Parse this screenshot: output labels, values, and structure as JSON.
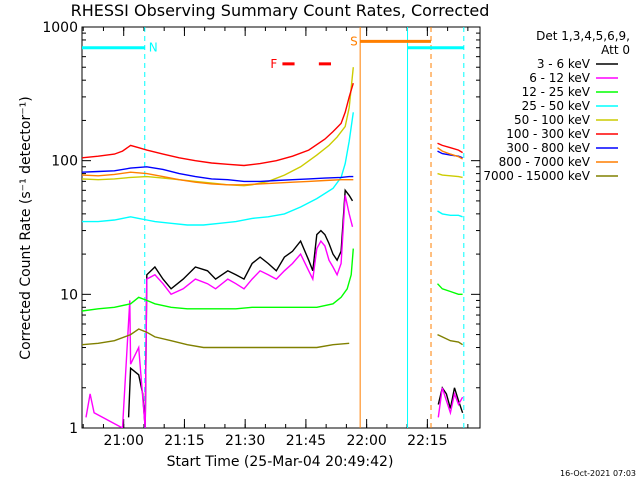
{
  "chart_data": {
    "type": "line",
    "title": "RHESSI Observing Summary Count Rates, Corrected",
    "xlabel": "Start Time (25-Mar-04 20:49:42)",
    "ylabel": "Corrected Count Rate (s⁻¹ detector⁻¹)",
    "y_scale": "log",
    "ylim": [
      1,
      1000
    ],
    "x_range_min": [
      0,
      98.3
    ],
    "x_start_time": "20:49:42",
    "x_ticks": [
      {
        "label": "21:00",
        "t": 10.3
      },
      {
        "label": "21:15",
        "t": 25.3
      },
      {
        "label": "21:30",
        "t": 40.3
      },
      {
        "label": "21:45",
        "t": 55.3
      },
      {
        "label": "22:00",
        "t": 70.3
      },
      {
        "label": "22:15",
        "t": 85.3
      }
    ],
    "y_ticks": [
      {
        "label": "1",
        "v": 1
      },
      {
        "label": "10",
        "v": 10
      },
      {
        "label": "100",
        "v": 100
      },
      {
        "label": "1000",
        "v": 1000
      }
    ],
    "legend_header": [
      "Det 1,3,4,5,6,9,",
      "Att 0"
    ],
    "annotations": {
      "N": {
        "label": "N",
        "color": "#00ffff"
      },
      "F": {
        "label": "F",
        "color": "#ff0000"
      },
      "S": {
        "label": "S",
        "color": "#ff7f00"
      }
    },
    "markers": {
      "n_level": 700,
      "s_level": 780,
      "cyan_dashed_t": [
        15.5,
        94.3
      ],
      "cyan_solid_t": [
        80.4
      ],
      "orange_solid_t": [
        68.7
      ],
      "orange_dashed_t": [
        86.2
      ],
      "n_bars_t": [
        [
          0,
          15.5
        ],
        [
          80.4,
          94.3
        ]
      ],
      "s_bar_t": [
        68.7,
        86.2
      ],
      "f_segments_t": [
        [
          49.5,
          52.5
        ],
        [
          58.5,
          61.5
        ]
      ],
      "f_level": 530
    },
    "gap_t": [
      67.2,
      87.6
    ],
    "series": [
      {
        "name": "3 - 6 keV",
        "color": "#000000",
        "points": [
          [
            11.5,
            1.2
          ],
          [
            12,
            2.8
          ],
          [
            14,
            2.5
          ],
          [
            15,
            1.8
          ],
          [
            15.6,
            1
          ],
          [
            16,
            14
          ],
          [
            18,
            16
          ],
          [
            20,
            13
          ],
          [
            22,
            11
          ],
          [
            25,
            13
          ],
          [
            28,
            16
          ],
          [
            31,
            15
          ],
          [
            33,
            13
          ],
          [
            36,
            15
          ],
          [
            38,
            14
          ],
          [
            40,
            13
          ],
          [
            42,
            17
          ],
          [
            44,
            19
          ],
          [
            46,
            17
          ],
          [
            48,
            15
          ],
          [
            50,
            19
          ],
          [
            52,
            21
          ],
          [
            54,
            25
          ],
          [
            56,
            18
          ],
          [
            57,
            15
          ],
          [
            58,
            28
          ],
          [
            59,
            30
          ],
          [
            60,
            28
          ],
          [
            61,
            24
          ],
          [
            62,
            20
          ],
          [
            63,
            18
          ],
          [
            64,
            21
          ],
          [
            65,
            60
          ],
          [
            66,
            55
          ],
          [
            66.8,
            50
          ]
        ],
        "points2": [
          [
            88,
            1.5
          ],
          [
            89,
            2
          ],
          [
            90,
            1.8
          ],
          [
            91,
            1.4
          ],
          [
            92,
            2
          ],
          [
            93,
            1.6
          ],
          [
            94,
            1.3
          ]
        ]
      },
      {
        "name": "6 - 12 keV",
        "color": "#ff00ff",
        "points": [
          [
            1,
            1.2
          ],
          [
            2,
            1.8
          ],
          [
            3,
            1.3
          ],
          [
            10,
            1
          ],
          [
            11.8,
            9
          ],
          [
            12,
            3
          ],
          [
            14,
            4
          ],
          [
            15.6,
            1
          ],
          [
            16,
            13
          ],
          [
            18,
            14
          ],
          [
            20,
            12
          ],
          [
            22,
            10
          ],
          [
            25,
            11
          ],
          [
            28,
            13
          ],
          [
            31,
            12
          ],
          [
            33,
            11
          ],
          [
            36,
            13
          ],
          [
            38,
            12
          ],
          [
            40,
            11
          ],
          [
            42,
            13
          ],
          [
            44,
            15
          ],
          [
            46,
            14
          ],
          [
            48,
            13
          ],
          [
            50,
            15
          ],
          [
            52,
            17
          ],
          [
            54,
            20
          ],
          [
            56,
            15
          ],
          [
            57,
            13
          ],
          [
            58,
            22
          ],
          [
            59,
            25
          ],
          [
            60,
            23
          ],
          [
            61,
            18
          ],
          [
            62,
            16
          ],
          [
            63,
            14
          ],
          [
            64,
            17
          ],
          [
            65,
            55
          ],
          [
            66,
            40
          ],
          [
            66.8,
            32
          ]
        ],
        "points2": [
          [
            88,
            1.2
          ],
          [
            89,
            2
          ],
          [
            90,
            1.6
          ],
          [
            91,
            1.3
          ],
          [
            92,
            1.8
          ],
          [
            93,
            1.5
          ],
          [
            94,
            1.7
          ]
        ]
      },
      {
        "name": "12 - 25 keV",
        "color": "#00ff00",
        "points": [
          [
            0,
            7.5
          ],
          [
            4,
            7.8
          ],
          [
            8,
            8
          ],
          [
            12,
            8.5
          ],
          [
            14,
            9.5
          ],
          [
            16,
            9
          ],
          [
            18,
            8.5
          ],
          [
            22,
            8
          ],
          [
            26,
            7.8
          ],
          [
            30,
            7.8
          ],
          [
            34,
            7.8
          ],
          [
            38,
            7.8
          ],
          [
            42,
            8
          ],
          [
            46,
            8
          ],
          [
            50,
            8
          ],
          [
            54,
            8
          ],
          [
            58,
            8
          ],
          [
            62,
            8.5
          ],
          [
            64,
            9.5
          ],
          [
            65.5,
            11
          ],
          [
            66.5,
            14
          ],
          [
            67,
            22
          ]
        ],
        "points2": [
          [
            87.8,
            12
          ],
          [
            89,
            11
          ],
          [
            91,
            10.5
          ],
          [
            93,
            10
          ],
          [
            94,
            10
          ]
        ]
      },
      {
        "name": "25 - 50 keV",
        "color": "#00ffff",
        "points": [
          [
            0,
            35
          ],
          [
            4,
            35
          ],
          [
            8,
            36
          ],
          [
            10,
            37
          ],
          [
            12,
            38
          ],
          [
            14,
            37
          ],
          [
            16,
            36
          ],
          [
            18,
            35
          ],
          [
            22,
            34
          ],
          [
            26,
            33
          ],
          [
            30,
            33
          ],
          [
            34,
            34
          ],
          [
            38,
            35
          ],
          [
            42,
            37
          ],
          [
            46,
            38
          ],
          [
            50,
            40
          ],
          [
            54,
            45
          ],
          [
            58,
            52
          ],
          [
            62,
            62
          ],
          [
            64,
            75
          ],
          [
            65,
            95
          ],
          [
            66,
            140
          ],
          [
            67,
            230
          ]
        ],
        "points2": [
          [
            87.8,
            42
          ],
          [
            89,
            40
          ],
          [
            91,
            39
          ],
          [
            93,
            39
          ],
          [
            94,
            38
          ]
        ]
      },
      {
        "name": "50 - 100 keV",
        "color": "#cccc00",
        "points": [
          [
            0,
            73
          ],
          [
            4,
            72
          ],
          [
            8,
            73
          ],
          [
            12,
            75
          ],
          [
            16,
            76
          ],
          [
            20,
            74
          ],
          [
            24,
            72
          ],
          [
            28,
            70
          ],
          [
            32,
            68
          ],
          [
            36,
            66
          ],
          [
            40,
            65
          ],
          [
            42,
            66
          ],
          [
            46,
            70
          ],
          [
            50,
            78
          ],
          [
            54,
            90
          ],
          [
            58,
            110
          ],
          [
            61,
            130
          ],
          [
            63,
            150
          ],
          [
            65,
            180
          ],
          [
            66,
            250
          ],
          [
            67,
            500
          ]
        ],
        "points2": [
          [
            87.8,
            80
          ],
          [
            89,
            78
          ],
          [
            91,
            77
          ],
          [
            93,
            76
          ],
          [
            94,
            75
          ]
        ]
      },
      {
        "name": "100 - 300 keV",
        "color": "#ff0000",
        "points": [
          [
            0,
            105
          ],
          [
            4,
            108
          ],
          [
            8,
            112
          ],
          [
            10,
            118
          ],
          [
            12,
            130
          ],
          [
            14,
            125
          ],
          [
            16,
            120
          ],
          [
            20,
            112
          ],
          [
            24,
            105
          ],
          [
            28,
            100
          ],
          [
            32,
            96
          ],
          [
            36,
            94
          ],
          [
            40,
            92
          ],
          [
            44,
            95
          ],
          [
            48,
            100
          ],
          [
            52,
            108
          ],
          [
            56,
            120
          ],
          [
            60,
            145
          ],
          [
            62,
            165
          ],
          [
            64,
            190
          ],
          [
            65,
            230
          ],
          [
            66,
            300
          ],
          [
            67,
            380
          ]
        ],
        "points2": [
          [
            87.8,
            135
          ],
          [
            89,
            130
          ],
          [
            91,
            125
          ],
          [
            93,
            120
          ],
          [
            94,
            115
          ]
        ]
      },
      {
        "name": "300 - 800 keV",
        "color": "#0000ff",
        "points": [
          [
            0,
            82
          ],
          [
            4,
            83
          ],
          [
            8,
            84
          ],
          [
            12,
            88
          ],
          [
            16,
            90
          ],
          [
            20,
            86
          ],
          [
            24,
            80
          ],
          [
            28,
            76
          ],
          [
            32,
            73
          ],
          [
            36,
            72
          ],
          [
            40,
            70
          ],
          [
            44,
            70
          ],
          [
            48,
            71
          ],
          [
            52,
            72
          ],
          [
            56,
            73
          ],
          [
            60,
            74
          ],
          [
            64,
            75
          ],
          [
            66,
            76
          ],
          [
            67,
            76
          ]
        ],
        "points2": [
          [
            87.8,
            118
          ],
          [
            89,
            113
          ],
          [
            91,
            110
          ],
          [
            93,
            108
          ],
          [
            94,
            105
          ]
        ]
      },
      {
        "name": "800 - 7000 keV",
        "color": "#ff7f00",
        "points": [
          [
            0,
            78
          ],
          [
            4,
            77
          ],
          [
            8,
            79
          ],
          [
            12,
            82
          ],
          [
            16,
            80
          ],
          [
            20,
            76
          ],
          [
            24,
            72
          ],
          [
            28,
            69
          ],
          [
            32,
            67
          ],
          [
            36,
            66
          ],
          [
            40,
            66
          ],
          [
            44,
            67
          ],
          [
            48,
            68
          ],
          [
            52,
            69
          ],
          [
            56,
            70
          ],
          [
            60,
            71
          ],
          [
            64,
            72
          ],
          [
            66,
            72
          ],
          [
            67,
            72
          ]
        ],
        "points2": [
          [
            87.8,
            125
          ],
          [
            89,
            118
          ],
          [
            91,
            112
          ],
          [
            93,
            107
          ],
          [
            94,
            103
          ]
        ]
      },
      {
        "name": "7000 - 15000 keV",
        "color": "#808000",
        "points": [
          [
            0,
            4.2
          ],
          [
            4,
            4.3
          ],
          [
            8,
            4.5
          ],
          [
            12,
            5
          ],
          [
            14,
            5.5
          ],
          [
            16,
            5.2
          ],
          [
            18,
            4.8
          ],
          [
            22,
            4.5
          ],
          [
            26,
            4.2
          ],
          [
            30,
            4
          ],
          [
            34,
            4
          ],
          [
            38,
            4
          ],
          [
            42,
            4
          ],
          [
            46,
            4
          ],
          [
            50,
            4
          ],
          [
            54,
            4
          ],
          [
            58,
            4
          ],
          [
            62,
            4.2
          ],
          [
            66,
            4.3
          ]
        ],
        "points2": [
          [
            87.8,
            5
          ],
          [
            89,
            4.8
          ],
          [
            91,
            4.5
          ],
          [
            93,
            4.4
          ],
          [
            94,
            4.2
          ]
        ]
      }
    ]
  },
  "footer": {
    "date_stamp": "16-Oct-2021 07:03"
  }
}
